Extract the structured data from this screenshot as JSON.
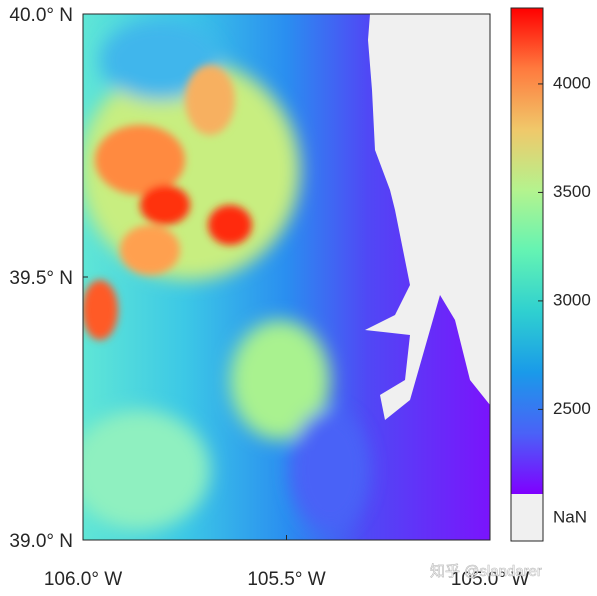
{
  "map": {
    "xlim": [
      -106.0,
      -105.0
    ],
    "ylim": [
      39.0,
      40.0
    ],
    "xticks": [
      {
        "value": -106.0,
        "label": "106.0° W"
      },
      {
        "value": -105.5,
        "label": "105.5° W"
      },
      {
        "value": -105.0,
        "label": "105.0° W"
      }
    ],
    "yticks": [
      {
        "value": 40.0,
        "label": "40.0° N"
      },
      {
        "value": 39.5,
        "label": "39.5° N"
      },
      {
        "value": 39.0,
        "label": "39.0° N"
      }
    ],
    "colorbar": {
      "clim": [
        2110,
        4350
      ],
      "ticks": [
        2500,
        3000,
        3500,
        4000
      ],
      "colormap": [
        "#7f00ff",
        "#4a62f7",
        "#1a9ae9",
        "#2fd0d0",
        "#64f3b3",
        "#b4f38e",
        "#f0c86a",
        "#ff7a3e",
        "#ff0000"
      ],
      "nan_label": "NaN",
      "nan_color": "#f0f0f0"
    },
    "watermark": "知乎 @slandarer"
  }
}
